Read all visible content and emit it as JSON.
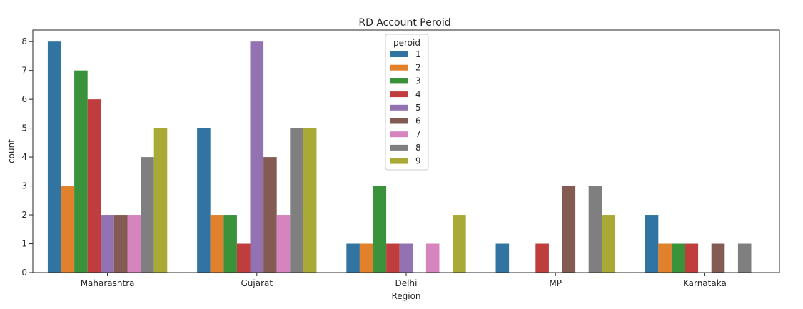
{
  "chart_data": {
    "type": "bar",
    "title": "RD Account Peroid",
    "xlabel": "Region",
    "ylabel": "count",
    "categories": [
      "Maharashtra",
      "Gujarat",
      "Delhi",
      "MP",
      "Karnataka"
    ],
    "ylim": [
      0,
      8.4
    ],
    "yticks": [
      "0",
      "1",
      "2",
      "3",
      "4",
      "5",
      "6",
      "7",
      "8"
    ],
    "grid": false,
    "legend": {
      "title": "peroid",
      "placement": "top-center"
    },
    "series": [
      {
        "name": "1",
        "color": "#3274a1",
        "values": [
          8,
          5,
          1,
          1,
          2
        ]
      },
      {
        "name": "2",
        "color": "#e1812c",
        "values": [
          3,
          2,
          1,
          0,
          1
        ]
      },
      {
        "name": "3",
        "color": "#3a923a",
        "values": [
          7,
          2,
          3,
          0,
          1
        ]
      },
      {
        "name": "4",
        "color": "#c03d3e",
        "values": [
          6,
          1,
          1,
          1,
          1
        ]
      },
      {
        "name": "5",
        "color": "#9372b2",
        "values": [
          2,
          8,
          1,
          0,
          0
        ]
      },
      {
        "name": "6",
        "color": "#845b53",
        "values": [
          2,
          4,
          0,
          3,
          1
        ]
      },
      {
        "name": "7",
        "color": "#d684bd",
        "values": [
          2,
          2,
          1,
          0,
          0
        ]
      },
      {
        "name": "8",
        "color": "#7f7f7f",
        "values": [
          4,
          5,
          0,
          3,
          1
        ]
      },
      {
        "name": "9",
        "color": "#a9aa35",
        "values": [
          5,
          5,
          2,
          2,
          0
        ]
      }
    ]
  }
}
